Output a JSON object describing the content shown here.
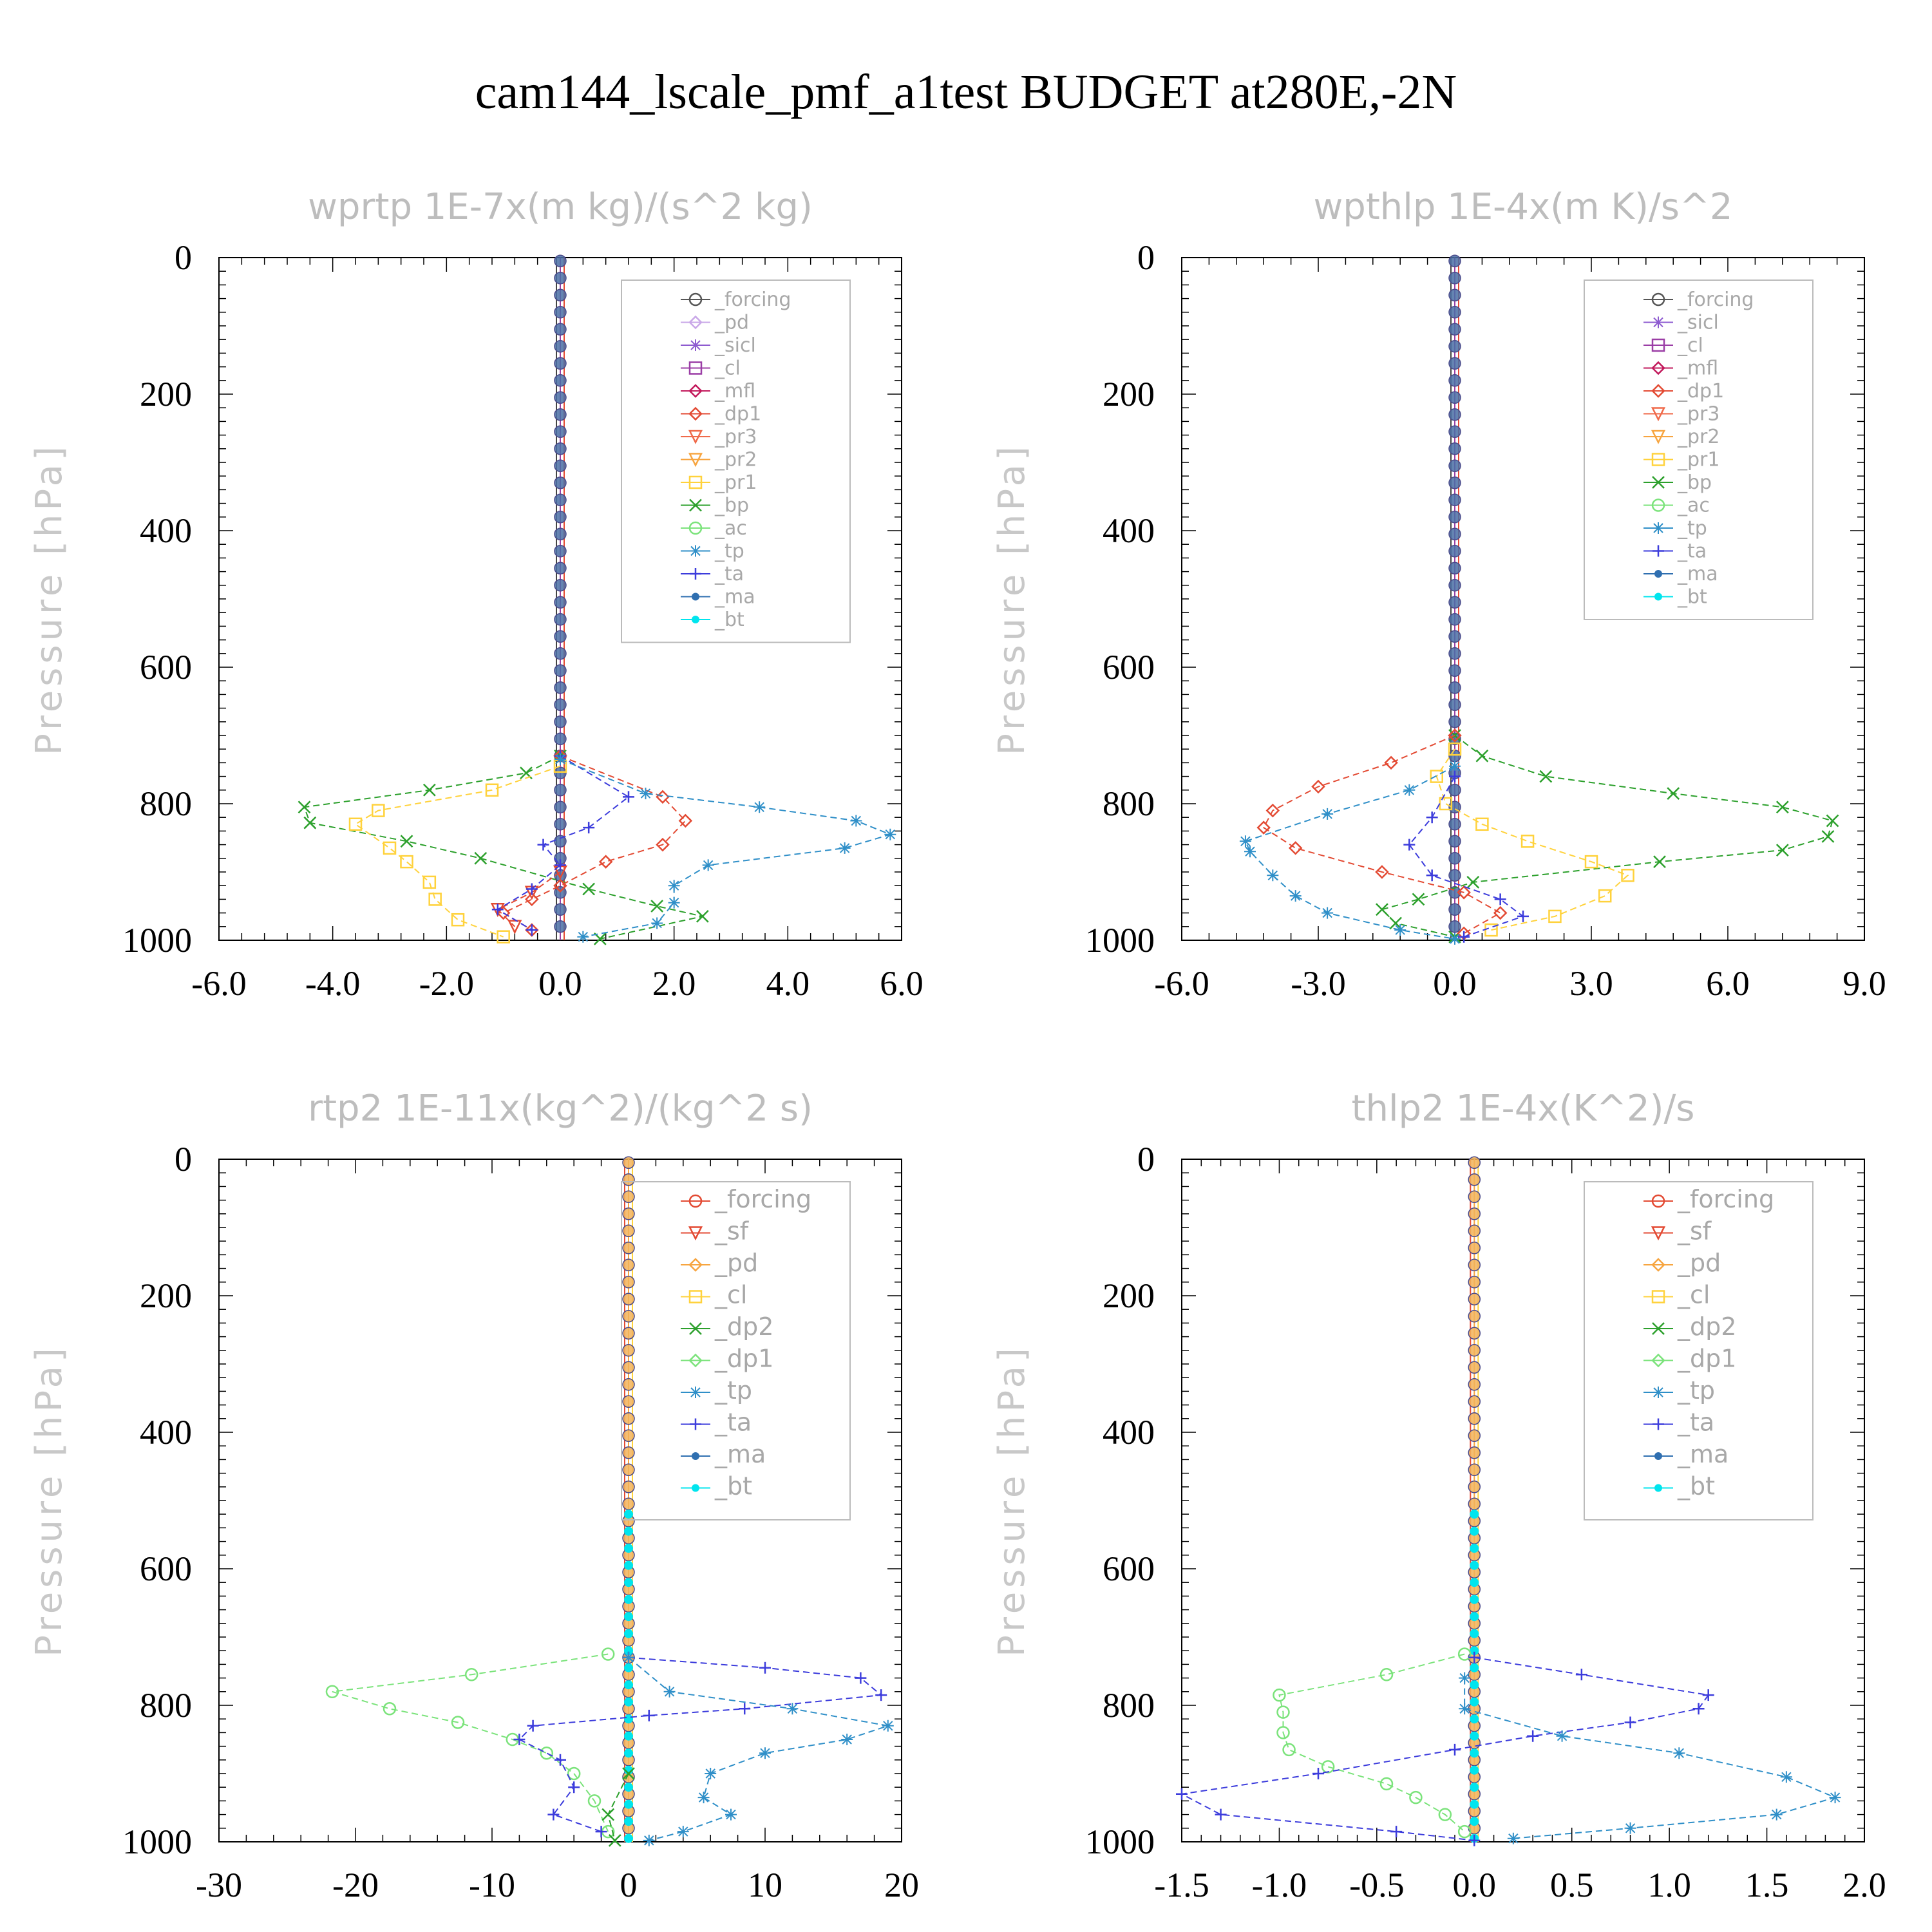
{
  "title": "cam144_lscale_pmf_a1test  BUDGET at280E,-2N",
  "chart_data": [
    {
      "type": "line",
      "title": "wprtp   1E-7x(m kg)/(s^2 kg)",
      "ylabel": "Pressure [hPa]",
      "xlim": [
        -6,
        6
      ],
      "xticks": [
        "-6.0",
        "-4.0",
        "-2.0",
        "0.0",
        "2.0",
        "4.0",
        "6.0"
      ],
      "xtick_values": [
        -6,
        -4,
        -2,
        0,
        2,
        4,
        6
      ],
      "ylim": [
        0,
        1000
      ],
      "yticks": [
        "0",
        "200",
        "400",
        "600",
        "800",
        "1000"
      ],
      "ytick_values": [
        0,
        200,
        400,
        600,
        800,
        1000
      ],
      "y_inverted": true,
      "legend": [
        "_forcing",
        "_pd",
        "_sicl",
        "_cl",
        "_mfl",
        "_dp1",
        "_pr3",
        "_pr2",
        "_pr1",
        "_bp",
        "_ac",
        "_tp",
        "_ta",
        "_ma",
        "_bt"
      ],
      "legend_position": "top-right",
      "series": [
        {
          "name": "_bp",
          "color": "#2ca02c",
          "marker": "x",
          "points": [
            [
              0,
              730
            ],
            [
              -0.6,
              755
            ],
            [
              -2.3,
              780
            ],
            [
              -4.5,
              805
            ],
            [
              -4.4,
              828
            ],
            [
              -2.7,
              855
            ],
            [
              -1.4,
              880
            ],
            [
              0.5,
              925
            ],
            [
              1.7,
              950
            ],
            [
              2.5,
              965
            ],
            [
              0.7,
              998
            ]
          ]
        },
        {
          "name": "_pr1",
          "color": "#ffd23c",
          "marker": "square",
          "points": [
            [
              0,
              745
            ],
            [
              -1.2,
              780
            ],
            [
              -3.2,
              810
            ],
            [
              -3.6,
              830
            ],
            [
              -3.0,
              865
            ],
            [
              -2.7,
              885
            ],
            [
              -2.3,
              915
            ],
            [
              -2.2,
              940
            ],
            [
              -1.8,
              970
            ],
            [
              -1.0,
              995
            ]
          ]
        },
        {
          "name": "_dp1",
          "color": "#e34a33",
          "marker": "diamond",
          "points": [
            [
              0,
              730
            ],
            [
              1.8,
              790
            ],
            [
              2.2,
              825
            ],
            [
              1.8,
              860
            ],
            [
              0.8,
              885
            ],
            [
              0,
              920
            ],
            [
              -0.5,
              940
            ],
            [
              -1.0,
              960
            ],
            [
              -0.5,
              985
            ]
          ]
        },
        {
          "name": "_pr3",
          "color": "#e34a33",
          "marker": "triangle-down",
          "points": [
            [
              0,
              900
            ],
            [
              -0.5,
              930
            ],
            [
              -1.1,
              955
            ],
            [
              -0.8,
              980
            ]
          ]
        },
        {
          "name": "_ta",
          "color": "#3c3cdc",
          "marker": "plus",
          "points": [
            [
              0,
              730
            ],
            [
              1.2,
              790
            ],
            [
              0.5,
              835
            ],
            [
              -0.3,
              860
            ],
            [
              0,
              890
            ],
            [
              -0.5,
              925
            ],
            [
              -1.1,
              955
            ],
            [
              -0.5,
              985
            ]
          ]
        },
        {
          "name": "_tp",
          "color": "#2f8fc8",
          "marker": "asterisk",
          "points": [
            [
              0,
              735
            ],
            [
              1.5,
              785
            ],
            [
              3.5,
              805
            ],
            [
              5.2,
              825
            ],
            [
              5.8,
              845
            ],
            [
              5.0,
              865
            ],
            [
              2.6,
              890
            ],
            [
              2.0,
              920
            ],
            [
              2.0,
              945
            ],
            [
              1.7,
              975
            ],
            [
              0.4,
              995
            ]
          ]
        },
        {
          "name": "_bt",
          "color": "#00e5ee",
          "marker": "dot",
          "points": [
            [
              0,
              0
            ],
            [
              0,
              1000
            ]
          ]
        }
      ]
    },
    {
      "type": "line",
      "title": "wpthlp   1E-4x(m K)/s^2",
      "ylabel": "Pressure [hPa]",
      "xlim": [
        -6,
        9
      ],
      "xticks": [
        "-6.0",
        "-3.0",
        "0.0",
        "3.0",
        "6.0",
        "9.0"
      ],
      "xtick_values": [
        -6,
        -3,
        0,
        3,
        6,
        9
      ],
      "ylim": [
        0,
        1000
      ],
      "yticks": [
        "0",
        "200",
        "400",
        "600",
        "800",
        "1000"
      ],
      "ytick_values": [
        0,
        200,
        400,
        600,
        800,
        1000
      ],
      "y_inverted": true,
      "legend": [
        "_forcing",
        "_sicl",
        "_cl",
        "_mfl",
        "_dp1",
        "_pr3",
        "_pr2",
        "_pr1",
        "_bp",
        "_ac",
        "_tp",
        "_ta",
        "_ma",
        "_bt"
      ],
      "legend_position": "top-right",
      "series": [
        {
          "name": "_bp",
          "color": "#2ca02c",
          "marker": "x",
          "points": [
            [
              0,
              700
            ],
            [
              0.6,
              730
            ],
            [
              2.0,
              760
            ],
            [
              4.8,
              785
            ],
            [
              7.2,
              805
            ],
            [
              8.3,
              825
            ],
            [
              8.2,
              848
            ],
            [
              7.2,
              868
            ],
            [
              4.5,
              885
            ],
            [
              0.4,
              915
            ],
            [
              -0.8,
              940
            ],
            [
              -1.6,
              955
            ],
            [
              -1.3,
              975
            ],
            [
              0,
              995
            ]
          ]
        },
        {
          "name": "_pr1",
          "color": "#ffd23c",
          "marker": "square",
          "points": [
            [
              0,
              720
            ],
            [
              -0.4,
              760
            ],
            [
              -0.2,
              800
            ],
            [
              0.6,
              830
            ],
            [
              1.6,
              855
            ],
            [
              3.0,
              885
            ],
            [
              3.8,
              905
            ],
            [
              3.3,
              935
            ],
            [
              2.2,
              965
            ],
            [
              0.8,
              985
            ]
          ]
        },
        {
          "name": "_dp1",
          "color": "#e34a33",
          "marker": "diamond",
          "points": [
            [
              0,
              700
            ],
            [
              -1.4,
              740
            ],
            [
              -3.0,
              775
            ],
            [
              -4.0,
              810
            ],
            [
              -4.2,
              835
            ],
            [
              -3.5,
              865
            ],
            [
              -1.6,
              900
            ],
            [
              0.2,
              930
            ],
            [
              1.0,
              960
            ],
            [
              0.2,
              990
            ]
          ]
        },
        {
          "name": "_tp",
          "color": "#2f8fc8",
          "marker": "asterisk",
          "points": [
            [
              0,
              745
            ],
            [
              -1.0,
              780
            ],
            [
              -2.8,
              815
            ],
            [
              -4.6,
              855
            ],
            [
              -4.5,
              870
            ],
            [
              -4.0,
              905
            ],
            [
              -3.5,
              935
            ],
            [
              -2.8,
              960
            ],
            [
              -1.2,
              985
            ],
            [
              0,
              998
            ]
          ]
        },
        {
          "name": "_ta",
          "color": "#3c3cdc",
          "marker": "plus",
          "points": [
            [
              0,
              760
            ],
            [
              -0.5,
              820
            ],
            [
              -1.0,
              860
            ],
            [
              -0.5,
              905
            ],
            [
              1.0,
              940
            ],
            [
              1.5,
              965
            ],
            [
              0.2,
              995
            ]
          ]
        },
        {
          "name": "_bt",
          "color": "#00e5ee",
          "marker": "dot",
          "points": [
            [
              0,
              0
            ],
            [
              0,
              1000
            ]
          ]
        }
      ]
    },
    {
      "type": "line",
      "title": "rtp2   1E-11x(kg^2)/(kg^2 s)",
      "ylabel": "Pressure [hPa]",
      "xlim": [
        -30,
        20
      ],
      "xticks": [
        "-30",
        "-20",
        "-10",
        "0",
        "10",
        "20"
      ],
      "xtick_values": [
        -30,
        -20,
        -10,
        0,
        10,
        20
      ],
      "ylim": [
        0,
        1000
      ],
      "yticks": [
        "0",
        "200",
        "400",
        "600",
        "800",
        "1000"
      ],
      "ytick_values": [
        0,
        200,
        400,
        600,
        800,
        1000
      ],
      "y_inverted": true,
      "legend": [
        "_forcing",
        "_sf",
        "_pd",
        "_cl",
        "_dp2",
        "_dp1",
        "_tp",
        "_ta",
        "_ma",
        "_bt"
      ],
      "legend_position": "top-right",
      "series": [
        {
          "name": "_dp1",
          "color": "#7be37b",
          "marker": "circle",
          "points": [
            [
              -1.5,
              725
            ],
            [
              -11.5,
              755
            ],
            [
              -21.7,
              780
            ],
            [
              -17.5,
              805
            ],
            [
              -12.5,
              825
            ],
            [
              -8.5,
              850
            ],
            [
              -6.0,
              870
            ],
            [
              -4.0,
              900
            ],
            [
              -2.5,
              940
            ],
            [
              -1.5,
              985
            ]
          ]
        },
        {
          "name": "_ta",
          "color": "#3c3cdc",
          "marker": "plus",
          "points": [
            [
              0,
              730
            ],
            [
              10,
              745
            ],
            [
              17,
              760
            ],
            [
              18.5,
              785
            ],
            [
              8.5,
              805
            ],
            [
              1.5,
              815
            ],
            [
              -7.0,
              830
            ],
            [
              -8.0,
              850
            ],
            [
              -5.0,
              880
            ],
            [
              -4.0,
              920
            ],
            [
              -5.5,
              960
            ],
            [
              -2.0,
              985
            ]
          ]
        },
        {
          "name": "_tp",
          "color": "#2f8fc8",
          "marker": "asterisk",
          "points": [
            [
              0,
              730
            ],
            [
              3.0,
              780
            ],
            [
              12.0,
              805
            ],
            [
              19.0,
              830
            ],
            [
              16.0,
              850
            ],
            [
              10.0,
              870
            ],
            [
              6.0,
              900
            ],
            [
              5.5,
              935
            ],
            [
              7.5,
              960
            ],
            [
              4.0,
              985
            ],
            [
              1.5,
              998
            ]
          ]
        },
        {
          "name": "_dp2",
          "color": "#2ca02c",
          "marker": "x",
          "points": [
            [
              0,
              900
            ],
            [
              -1.5,
              960
            ],
            [
              -1.0,
              998
            ]
          ]
        },
        {
          "name": "_bt",
          "color": "#00e5ee",
          "marker": "dot",
          "points": [
            [
              0,
              0
            ],
            [
              0,
              1000
            ]
          ]
        }
      ]
    },
    {
      "type": "line",
      "title": "thlp2   1E-4x(K^2)/s",
      "ylabel": "Pressure [hPa]",
      "xlim": [
        -1.5,
        2.0
      ],
      "xticks": [
        "-1.5",
        "-1.0",
        "-0.5",
        "0.0",
        "0.5",
        "1.0",
        "1.5",
        "2.0"
      ],
      "xtick_values": [
        -1.5,
        -1.0,
        -0.5,
        0,
        0.5,
        1.0,
        1.5,
        2.0
      ],
      "ylim": [
        0,
        1000
      ],
      "yticks": [
        "0",
        "200",
        "400",
        "600",
        "800",
        "1000"
      ],
      "ytick_values": [
        0,
        200,
        400,
        600,
        800,
        1000
      ],
      "y_inverted": true,
      "legend": [
        "_forcing",
        "_sf",
        "_pd",
        "_cl",
        "_dp2",
        "_dp1",
        "_tp",
        "_ta",
        "_ma",
        "_bt"
      ],
      "legend_position": "top-right",
      "series": [
        {
          "name": "_dp1",
          "color": "#7be37b",
          "marker": "circle",
          "points": [
            [
              -0.05,
              725
            ],
            [
              -0.45,
              755
            ],
            [
              -1.0,
              785
            ],
            [
              -0.98,
              810
            ],
            [
              -0.98,
              840
            ],
            [
              -0.95,
              865
            ],
            [
              -0.75,
              890
            ],
            [
              -0.45,
              915
            ],
            [
              -0.3,
              935
            ],
            [
              -0.15,
              960
            ],
            [
              -0.05,
              985
            ]
          ]
        },
        {
          "name": "_ta",
          "color": "#3c3cdc",
          "marker": "plus",
          "points": [
            [
              0,
              730
            ],
            [
              0.55,
              755
            ],
            [
              1.2,
              785
            ],
            [
              1.15,
              805
            ],
            [
              0.8,
              825
            ],
            [
              0.3,
              845
            ],
            [
              -0.1,
              865
            ],
            [
              -0.8,
              900
            ],
            [
              -1.5,
              930
            ],
            [
              -1.3,
              960
            ],
            [
              -0.4,
              985
            ],
            [
              0,
              998
            ]
          ]
        },
        {
          "name": "_tp",
          "color": "#2f8fc8",
          "marker": "asterisk",
          "points": [
            [
              -0.05,
              760
            ],
            [
              -0.05,
              805
            ],
            [
              0.45,
              845
            ],
            [
              1.05,
              870
            ],
            [
              1.6,
              905
            ],
            [
              1.85,
              935
            ],
            [
              1.55,
              960
            ],
            [
              0.8,
              980
            ],
            [
              0.2,
              995
            ]
          ]
        },
        {
          "name": "_bt",
          "color": "#00e5ee",
          "marker": "dot",
          "points": [
            [
              0,
              0
            ],
            [
              0,
              1000
            ]
          ]
        }
      ]
    }
  ]
}
